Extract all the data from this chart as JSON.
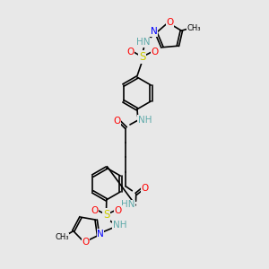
{
  "bg_color": "#e8e8e8",
  "atom_colors": {
    "C": "#000000",
    "N": "#0000ff",
    "O": "#ff0000",
    "S": "#cccc00",
    "H": "#5faaaa"
  },
  "bond_color": "#000000",
  "lw": 1.2,
  "fs": 7.5,
  "iso_r": 0.5,
  "benz_r": 0.6,
  "xlim": [
    0,
    10
  ],
  "ylim": [
    0,
    10
  ]
}
